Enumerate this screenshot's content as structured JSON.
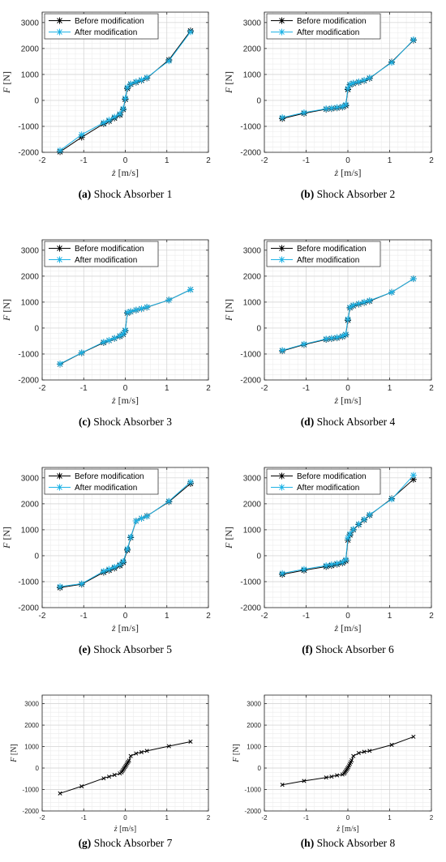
{
  "chart_data": [
    {
      "type": "line",
      "caption": {
        "letter": "(a)",
        "text": " Shock Absorber 1"
      },
      "xlabel": {
        "var": "ż",
        "unit": " [m/s]"
      },
      "ylabel": {
        "var": "F",
        "unit": " [N]"
      },
      "xlim": [
        -2,
        2
      ],
      "ylim": [
        -2000,
        3400
      ],
      "xticks": [
        "-2",
        "-1",
        "0",
        "1",
        "2"
      ],
      "yticks": [
        "-2000",
        "-1000",
        "0",
        "1000",
        "2000",
        "3000"
      ],
      "grid": true,
      "legend_position": "top-left",
      "series": [
        {
          "name": "Before modification",
          "color": "#000000",
          "x": [
            -1.57,
            -1.05,
            -0.52,
            -0.39,
            -0.26,
            -0.13,
            -0.05,
            0,
            0.05,
            0.13,
            0.26,
            0.39,
            0.52,
            1.05,
            1.57
          ],
          "y": [
            -1980,
            -1420,
            -900,
            -800,
            -680,
            -560,
            -350,
            40,
            460,
            620,
            700,
            770,
            860,
            1560,
            2680
          ]
        },
        {
          "name": "After modification",
          "color": "#1fb3e6",
          "x": [
            -1.57,
            -1.05,
            -0.52,
            -0.39,
            -0.26,
            -0.13,
            -0.05,
            0,
            0.05,
            0.13,
            0.26,
            0.39,
            0.52,
            1.05,
            1.57
          ],
          "y": [
            -1930,
            -1320,
            -860,
            -760,
            -640,
            -520,
            -320,
            80,
            500,
            640,
            720,
            790,
            880,
            1520,
            2640
          ]
        }
      ]
    },
    {
      "type": "line",
      "caption": {
        "letter": "(b)",
        "text": " Shock Absorber 2"
      },
      "xlabel": {
        "var": "ż",
        "unit": " [m/s]"
      },
      "ylabel": {
        "var": "F",
        "unit": " [N]"
      },
      "xlim": [
        -2,
        2
      ],
      "ylim": [
        -2000,
        3400
      ],
      "xticks": [
        "-2",
        "-1",
        "0",
        "1",
        "2"
      ],
      "yticks": [
        "-2000",
        "-1000",
        "0",
        "1000",
        "2000",
        "3000"
      ],
      "grid": true,
      "legend_position": "top-left",
      "series": [
        {
          "name": "Before modification",
          "color": "#000000",
          "x": [
            -1.57,
            -1.05,
            -0.52,
            -0.39,
            -0.26,
            -0.13,
            -0.05,
            0,
            0.05,
            0.13,
            0.26,
            0.39,
            0.52,
            1.05,
            1.57
          ],
          "y": [
            -700,
            -500,
            -340,
            -320,
            -290,
            -260,
            -200,
            420,
            600,
            650,
            700,
            760,
            850,
            1480,
            2320
          ]
        },
        {
          "name": "After modification",
          "color": "#1fb3e6",
          "x": [
            -1.57,
            -1.05,
            -0.52,
            -0.39,
            -0.26,
            -0.13,
            -0.05,
            0,
            0.05,
            0.13,
            0.26,
            0.39,
            0.52,
            1.05,
            1.57
          ],
          "y": [
            -660,
            -470,
            -320,
            -300,
            -270,
            -240,
            -160,
            460,
            620,
            670,
            720,
            780,
            870,
            1460,
            2340
          ]
        }
      ]
    },
    {
      "type": "line",
      "caption": {
        "letter": "(c)",
        "text": " Shock Absorber 3"
      },
      "xlabel": {
        "var": "ż",
        "unit": " [m/s]"
      },
      "ylabel": {
        "var": "F",
        "unit": " [N]"
      },
      "xlim": [
        -2,
        2
      ],
      "ylim": [
        -2000,
        3400
      ],
      "xticks": [
        "-2",
        "-1",
        "0",
        "1",
        "2"
      ],
      "yticks": [
        "-2000",
        "-1000",
        "0",
        "1000",
        "2000",
        "3000"
      ],
      "grid": true,
      "legend_position": "top-left",
      "series": [
        {
          "name": "Before modification",
          "color": "#000000",
          "x": [
            -1.57,
            -1.05,
            -0.52,
            -0.39,
            -0.26,
            -0.13,
            -0.05,
            0,
            0.05,
            0.13,
            0.26,
            0.39,
            0.52,
            1.05,
            1.57
          ],
          "y": [
            -1390,
            -960,
            -560,
            -480,
            -400,
            -320,
            -240,
            -100,
            580,
            630,
            690,
            740,
            800,
            1080,
            1480
          ]
        },
        {
          "name": "After modification",
          "color": "#1fb3e6",
          "x": [
            -1.57,
            -1.05,
            -0.52,
            -0.39,
            -0.26,
            -0.13,
            -0.05,
            0,
            0.05,
            0.13,
            0.26,
            0.39,
            0.52,
            1.05,
            1.57
          ],
          "y": [
            -1380,
            -950,
            -540,
            -470,
            -390,
            -300,
            -220,
            -80,
            600,
            640,
            700,
            750,
            810,
            1080,
            1480
          ]
        }
      ]
    },
    {
      "type": "line",
      "caption": {
        "letter": "(d)",
        "text": " Shock Absorber 4"
      },
      "xlabel": {
        "var": "ż",
        "unit": " [m/s]"
      },
      "ylabel": {
        "var": "F",
        "unit": " [N]"
      },
      "xlim": [
        -2,
        2
      ],
      "ylim": [
        -2000,
        3400
      ],
      "xticks": [
        "-2",
        "-1",
        "0",
        "1",
        "2"
      ],
      "yticks": [
        "-2000",
        "-1000",
        "0",
        "1000",
        "2000",
        "3000"
      ],
      "grid": true,
      "legend_position": "top-left",
      "series": [
        {
          "name": "Before modification",
          "color": "#000000",
          "x": [
            -1.57,
            -1.05,
            -0.52,
            -0.39,
            -0.26,
            -0.13,
            -0.05,
            0,
            0.05,
            0.13,
            0.26,
            0.39,
            0.52,
            1.05,
            1.57
          ],
          "y": [
            -880,
            -640,
            -440,
            -410,
            -380,
            -330,
            -260,
            300,
            780,
            860,
            920,
            980,
            1040,
            1380,
            1900
          ]
        },
        {
          "name": "After modification",
          "color": "#1fb3e6",
          "x": [
            -1.57,
            -1.05,
            -0.52,
            -0.39,
            -0.26,
            -0.13,
            -0.05,
            0,
            0.05,
            0.13,
            0.26,
            0.39,
            0.52,
            1.05,
            1.57
          ],
          "y": [
            -860,
            -620,
            -420,
            -390,
            -360,
            -310,
            -240,
            340,
            800,
            880,
            940,
            1000,
            1060,
            1380,
            1900
          ]
        }
      ]
    },
    {
      "type": "line",
      "caption": {
        "letter": "(e)",
        "text": " Shock Absorber 5"
      },
      "xlabel": {
        "var": "ż",
        "unit": " [m/s]"
      },
      "ylabel": {
        "var": "F",
        "unit": " [N]"
      },
      "xlim": [
        -2,
        2
      ],
      "ylim": [
        -2000,
        3400
      ],
      "xticks": [
        "-2",
        "-1",
        "0",
        "1",
        "2"
      ],
      "yticks": [
        "-2000",
        "-1000",
        "0",
        "1000",
        "2000",
        "3000"
      ],
      "grid": true,
      "legend_position": "top-left",
      "series": [
        {
          "name": "Before modification",
          "color": "#000000",
          "x": [
            -1.57,
            -1.05,
            -0.52,
            -0.39,
            -0.26,
            -0.13,
            -0.05,
            0.05,
            0.13,
            0.26,
            0.39,
            0.52,
            1.05,
            1.57
          ],
          "y": [
            -1230,
            -1100,
            -640,
            -560,
            -480,
            -380,
            -260,
            220,
            700,
            1340,
            1440,
            1530,
            2080,
            2780
          ]
        },
        {
          "name": "After modification",
          "color": "#1fb3e6",
          "x": [
            -1.57,
            -1.05,
            -0.52,
            -0.39,
            -0.26,
            -0.13,
            -0.05,
            0.05,
            0.13,
            0.26,
            0.39,
            0.52,
            1.05,
            1.57
          ],
          "y": [
            -1190,
            -1080,
            -600,
            -520,
            -440,
            -340,
            -220,
            260,
            720,
            1340,
            1440,
            1520,
            2100,
            2840
          ]
        }
      ]
    },
    {
      "type": "line",
      "caption": {
        "letter": "(f)",
        "text": " Shock Absorber 6"
      },
      "xlabel": {
        "var": "ż",
        "unit": " [m/s]"
      },
      "ylabel": {
        "var": "F",
        "unit": " [N]"
      },
      "xlim": [
        -2,
        2
      ],
      "ylim": [
        -2000,
        3400
      ],
      "xticks": [
        "-2",
        "-1",
        "0",
        "1",
        "2"
      ],
      "yticks": [
        "-2000",
        "-1000",
        "0",
        "1000",
        "2000",
        "3000"
      ],
      "grid": true,
      "legend_position": "top-left",
      "series": [
        {
          "name": "Before modification",
          "color": "#000000",
          "x": [
            -1.57,
            -1.05,
            -0.52,
            -0.39,
            -0.26,
            -0.13,
            -0.05,
            0,
            0.05,
            0.13,
            0.26,
            0.39,
            0.52,
            1.05,
            1.57
          ],
          "y": [
            -720,
            -560,
            -420,
            -380,
            -330,
            -280,
            -200,
            600,
            800,
            1000,
            1200,
            1380,
            1560,
            2200,
            2940
          ]
        },
        {
          "name": "After modification",
          "color": "#1fb3e6",
          "x": [
            -1.57,
            -1.05,
            -0.52,
            -0.39,
            -0.26,
            -0.13,
            -0.05,
            0,
            0.05,
            0.13,
            0.26,
            0.39,
            0.52,
            1.05,
            1.57
          ],
          "y": [
            -680,
            -520,
            -380,
            -340,
            -300,
            -250,
            -150,
            680,
            840,
            1020,
            1220,
            1400,
            1580,
            2180,
            3100
          ]
        }
      ]
    },
    {
      "type": "line",
      "caption": {
        "letter": "(g)",
        "text": " Shock Absorber 7"
      },
      "xlabel": {
        "var": "ż",
        "unit": " [m/s]"
      },
      "ylabel": {
        "var": "F",
        "unit": " [N]"
      },
      "xlim": [
        -2,
        2
      ],
      "ylim": [
        -2000,
        3400
      ],
      "xticks": [
        "-2",
        "-1",
        "0",
        "1",
        "2"
      ],
      "yticks": [
        "-2000",
        "-1000",
        "0",
        "1000",
        "2000",
        "3000"
      ],
      "grid": true,
      "legend_position": "none",
      "series": [
        {
          "color": "#000000",
          "marker": "x",
          "x": [
            -1.57,
            -1.05,
            -0.52,
            -0.39,
            -0.26,
            -0.13,
            -0.09,
            -0.07,
            -0.05,
            -0.03,
            -0.01,
            0.01,
            0.03,
            0.05,
            0.07,
            0.09,
            0.13,
            0.26,
            0.39,
            0.52,
            1.05,
            1.57
          ],
          "y": [
            -1180,
            -850,
            -480,
            -400,
            -320,
            -250,
            -200,
            -140,
            -80,
            -20,
            40,
            100,
            160,
            230,
            290,
            350,
            560,
            680,
            740,
            800,
            1020,
            1230
          ]
        }
      ]
    },
    {
      "type": "line",
      "caption": {
        "letter": "(h)",
        "text": " Shock Absorber 8"
      },
      "xlabel": {
        "var": "ż",
        "unit": " [m/s]"
      },
      "ylabel": {
        "var": "F",
        "unit": " [N]"
      },
      "xlim": [
        -2,
        2
      ],
      "ylim": [
        -2000,
        3400
      ],
      "xticks": [
        "-2",
        "-1",
        "0",
        "1",
        "2"
      ],
      "yticks": [
        "-2000",
        "-1000",
        "0",
        "1000",
        "2000",
        "3000"
      ],
      "grid": true,
      "legend_position": "none",
      "series": [
        {
          "color": "#000000",
          "marker": "x",
          "x": [
            -1.57,
            -1.05,
            -0.52,
            -0.39,
            -0.26,
            -0.13,
            -0.09,
            -0.07,
            -0.05,
            -0.03,
            -0.01,
            0.01,
            0.03,
            0.05,
            0.07,
            0.09,
            0.13,
            0.26,
            0.39,
            0.52,
            1.05,
            1.57
          ],
          "y": [
            -780,
            -600,
            -440,
            -400,
            -340,
            -300,
            -260,
            -200,
            -140,
            -80,
            -20,
            40,
            120,
            200,
            280,
            360,
            560,
            700,
            760,
            800,
            1080,
            1460
          ]
        }
      ]
    }
  ]
}
